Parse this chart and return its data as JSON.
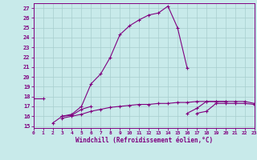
{
  "xlabel": "Windchill (Refroidissement éolien,°C)",
  "x": [
    0,
    1,
    2,
    3,
    4,
    5,
    6,
    7,
    8,
    9,
    10,
    11,
    12,
    13,
    14,
    15,
    16,
    17,
    18,
    19,
    20,
    21,
    22,
    23
  ],
  "line1": [
    17.8,
    17.8,
    null,
    16.0,
    16.2,
    17.0,
    19.3,
    20.3,
    22.0,
    24.3,
    25.2,
    25.8,
    26.3,
    26.5,
    27.2,
    25.0,
    20.9,
    null,
    null,
    null,
    null,
    null,
    null,
    null
  ],
  "line2": [
    null,
    null,
    15.3,
    16.0,
    16.1,
    16.7,
    17.0,
    null,
    null,
    null,
    null,
    null,
    null,
    null,
    null,
    null,
    null,
    null,
    null,
    null,
    null,
    null,
    null,
    null
  ],
  "line3": [
    null,
    null,
    null,
    15.8,
    16.0,
    16.2,
    16.5,
    16.7,
    16.9,
    17.0,
    17.1,
    17.2,
    17.2,
    17.3,
    17.3,
    17.4,
    17.4,
    17.5,
    17.5,
    17.5,
    17.5,
    null,
    null,
    null
  ],
  "line4": [
    null,
    null,
    null,
    null,
    null,
    null,
    null,
    null,
    null,
    null,
    null,
    null,
    null,
    null,
    null,
    null,
    16.3,
    16.8,
    17.5,
    17.5,
    17.5,
    17.5,
    17.5,
    17.3
  ],
  "line5": [
    null,
    null,
    null,
    null,
    null,
    null,
    null,
    null,
    null,
    null,
    null,
    null,
    null,
    null,
    null,
    null,
    null,
    16.3,
    16.5,
    17.3,
    17.3,
    17.3,
    17.3,
    17.2
  ],
  "color": "#800080",
  "bg_color": "#c8eaea",
  "grid_color": "#a8cece",
  "ylim": [
    14.8,
    27.5
  ],
  "xlim": [
    0,
    23
  ],
  "yticks": [
    15,
    16,
    17,
    18,
    19,
    20,
    21,
    22,
    23,
    24,
    25,
    26,
    27
  ],
  "xticks": [
    0,
    1,
    2,
    3,
    4,
    5,
    6,
    7,
    8,
    9,
    10,
    11,
    12,
    13,
    14,
    15,
    16,
    17,
    18,
    19,
    20,
    21,
    22,
    23
  ]
}
